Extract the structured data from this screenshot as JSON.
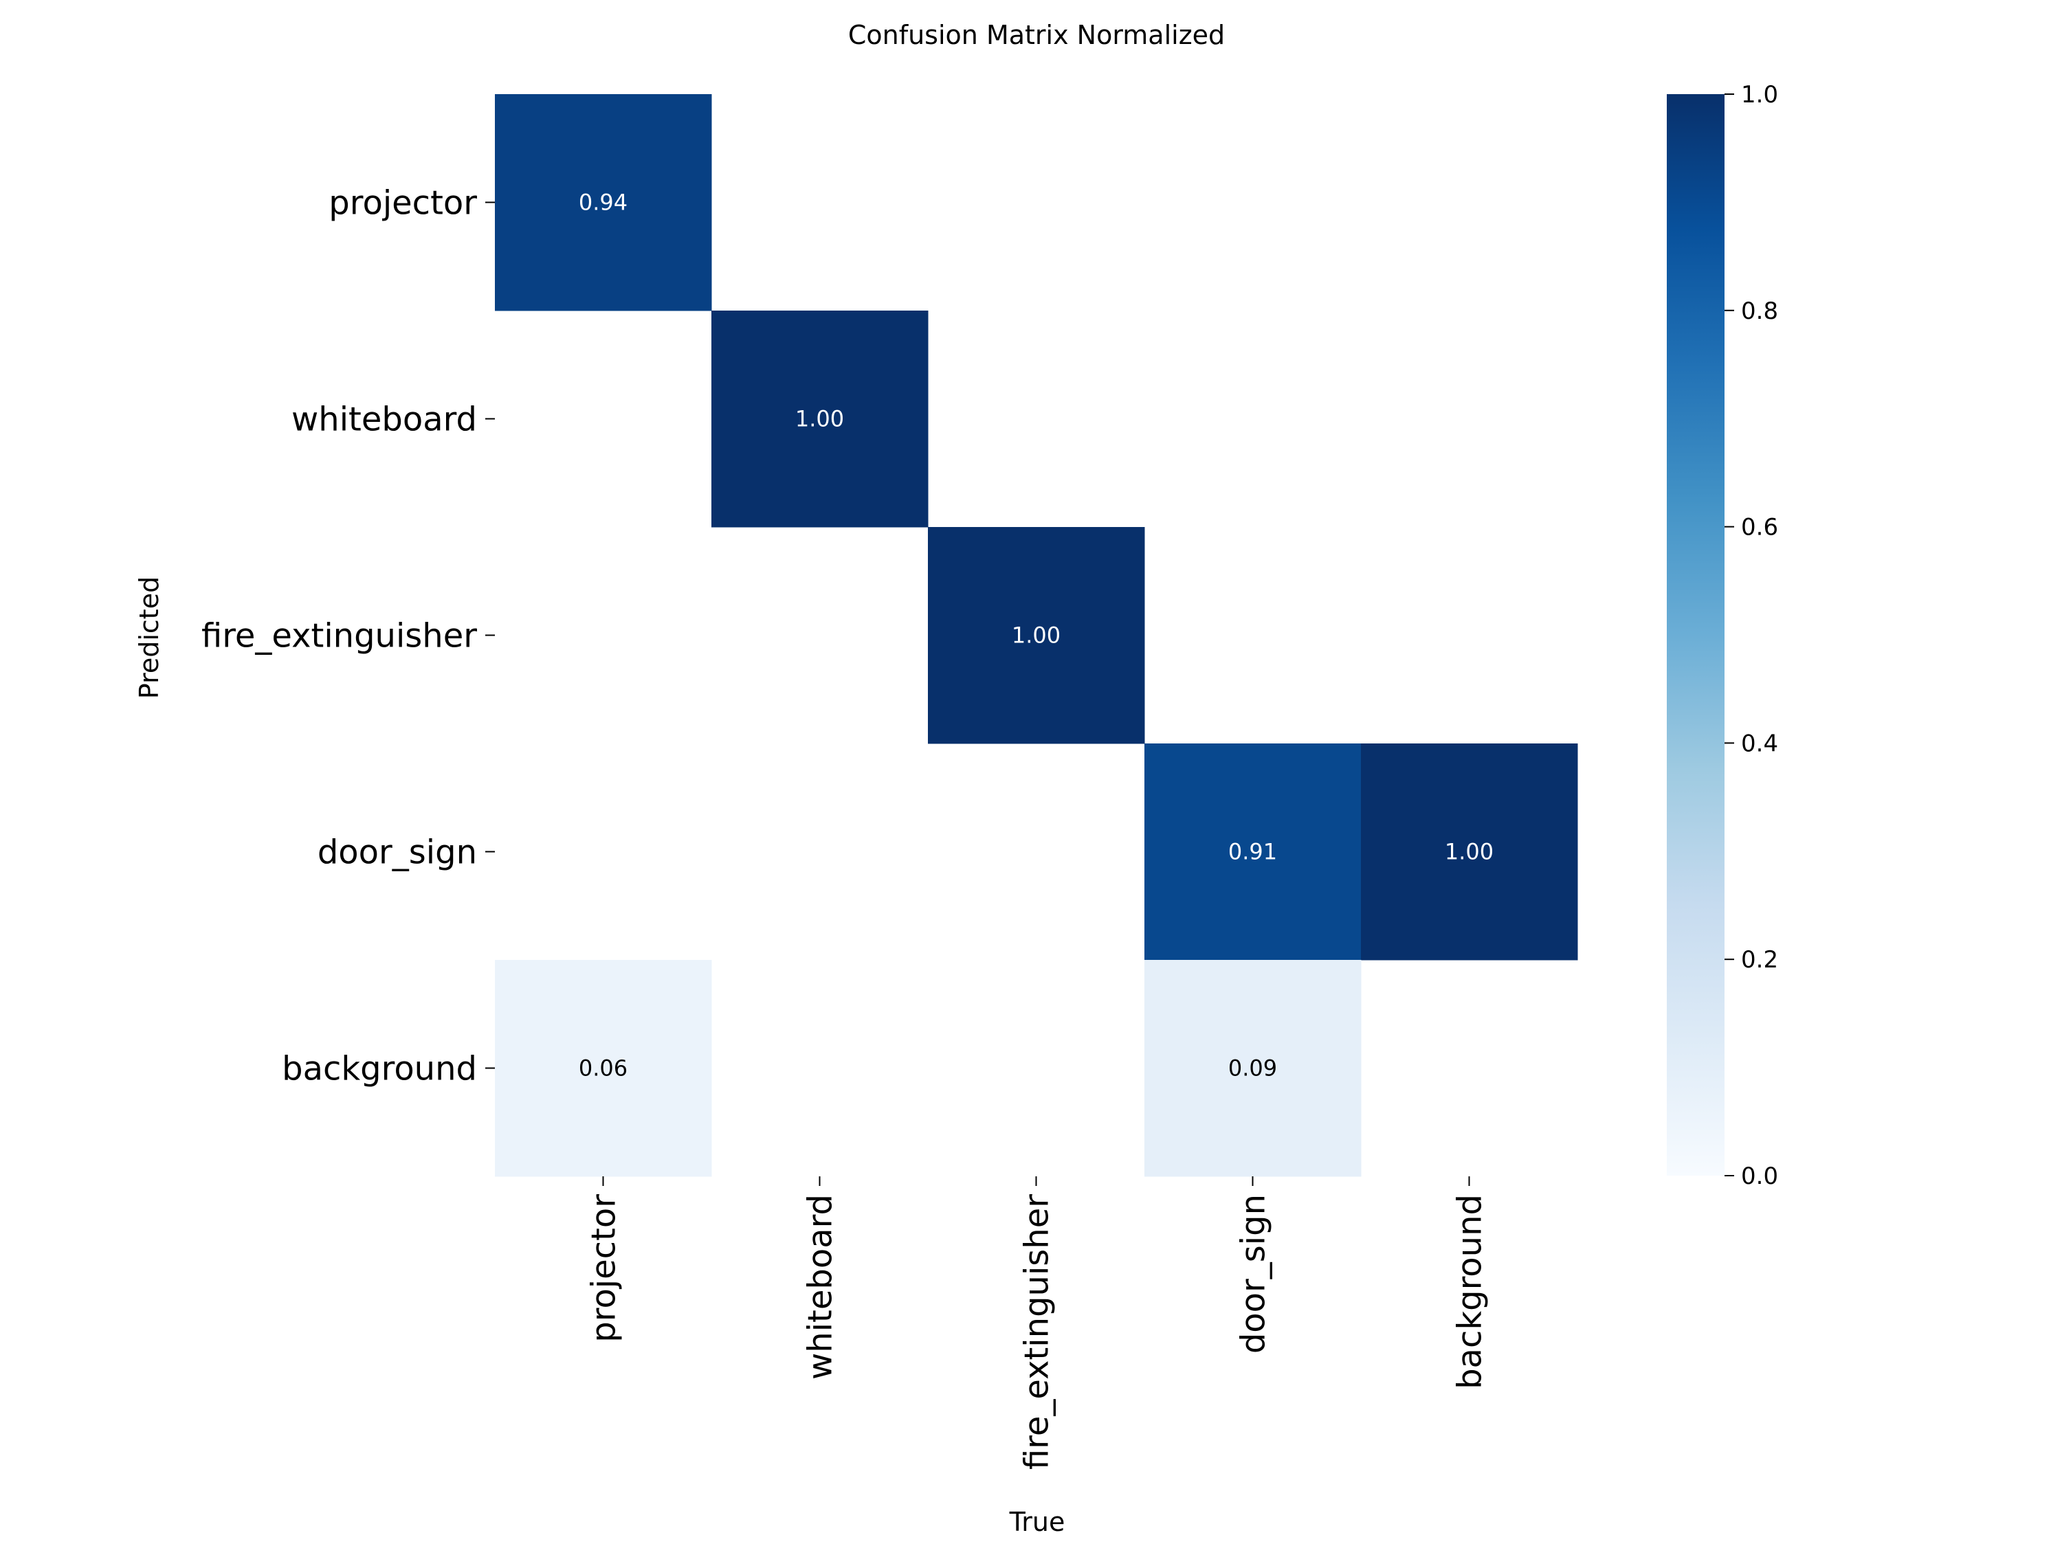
{
  "chart_data": {
    "type": "heatmap",
    "title": "Confusion Matrix Normalized",
    "xlabel": "True",
    "ylabel": "Predicted",
    "x_categories": [
      "projector",
      "whiteboard",
      "fire_extinguisher",
      "door_sign",
      "background"
    ],
    "y_categories": [
      "projector",
      "whiteboard",
      "fire_extinguisher",
      "door_sign",
      "background"
    ],
    "values": [
      [
        0.94,
        null,
        null,
        null,
        null
      ],
      [
        null,
        1.0,
        null,
        null,
        null
      ],
      [
        null,
        null,
        1.0,
        null,
        null
      ],
      [
        null,
        null,
        null,
        0.91,
        1.0
      ],
      [
        0.06,
        null,
        null,
        0.09,
        null
      ]
    ],
    "value_labels": [
      [
        "0.94",
        "",
        "",
        "",
        ""
      ],
      [
        "",
        "1.00",
        "",
        "",
        ""
      ],
      [
        "",
        "",
        "1.00",
        "",
        ""
      ],
      [
        "",
        "",
        "",
        "0.91",
        "1.00"
      ],
      [
        "0.06",
        "",
        "",
        "0.09",
        ""
      ]
    ],
    "colormap": "Blues",
    "colorbar": {
      "range": [
        0,
        1
      ],
      "ticks": [
        0.0,
        0.2,
        0.4,
        0.6,
        0.8,
        1.0
      ],
      "tick_labels": [
        "0.0",
        "0.2",
        "0.4",
        "0.6",
        "0.8",
        "1.0"
      ]
    },
    "grid": false
  }
}
